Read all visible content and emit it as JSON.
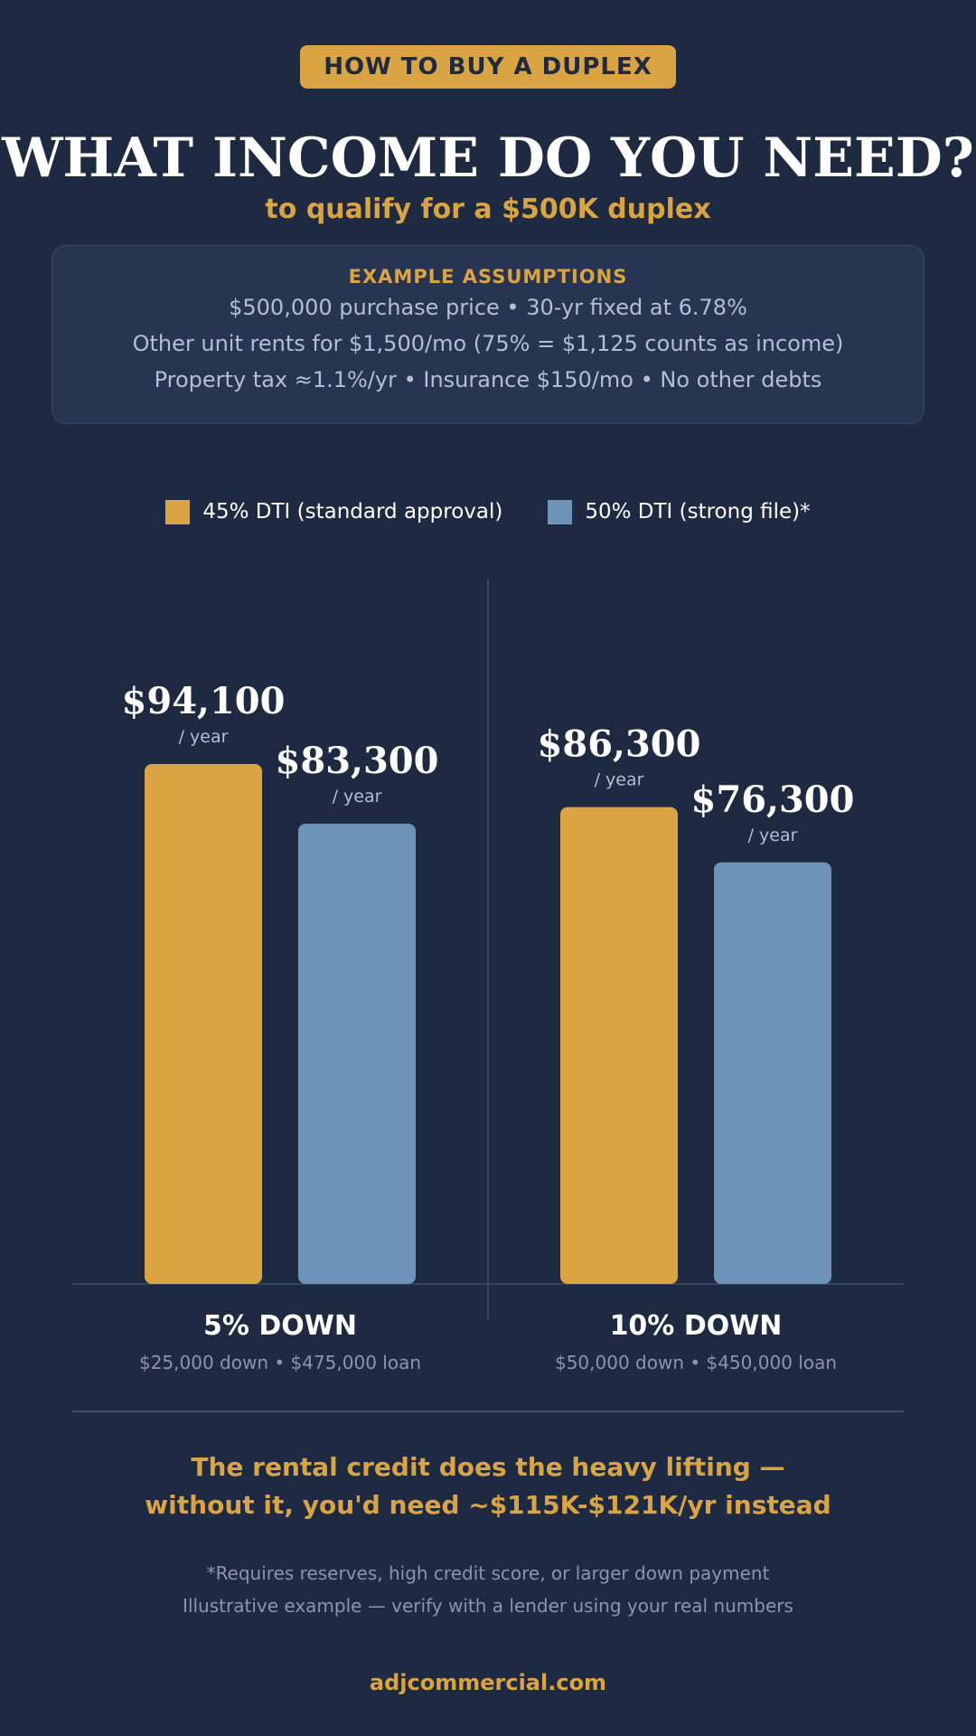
{
  "badge": "HOW TO BUY A DUPLEX",
  "title": "WHAT INCOME DO YOU NEED?",
  "subtitle": "to qualify for a $500K duplex",
  "assumptions": {
    "heading": "EXAMPLE ASSUMPTIONS",
    "lines": [
      "$500,000 purchase price   •   30-yr fixed at 6.78%",
      "Other unit rents for $1,500/mo (75% = $1,125 counts as income)",
      "Property tax ≈1.1%/yr   •   Insurance $150/mo   •   No other debts"
    ]
  },
  "colors": {
    "background": "#1e2942",
    "accent": "#d9a441",
    "series_45": "#d9a441",
    "series_50": "#6d93b8"
  },
  "chart_data": {
    "type": "bar",
    "categories": [
      "5% DOWN",
      "10% DOWN"
    ],
    "category_details": [
      "$25,000 down • $475,000 loan",
      "$50,000 down • $450,000 loan"
    ],
    "series": [
      {
        "name": "45% DTI (standard approval)",
        "values": [
          94100,
          86300
        ],
        "labels": [
          "$94,100",
          "$86,300"
        ]
      },
      {
        "name": "50% DTI (strong file)*",
        "values": [
          83300,
          76300
        ],
        "labels": [
          "$83,300",
          "$76,300"
        ]
      }
    ],
    "value_unit_label": "/ year",
    "legend_position": "top-center",
    "grid": false
  },
  "takeaway": [
    "The rental credit does the heavy lifting —",
    "without it, you'd need ~$115K-$121K/yr instead"
  ],
  "footnotes": [
    "*Requires reserves, high credit score, or larger down payment",
    "Illustrative example — verify with a lender using your real numbers"
  ],
  "website": "adjcommercial.com"
}
